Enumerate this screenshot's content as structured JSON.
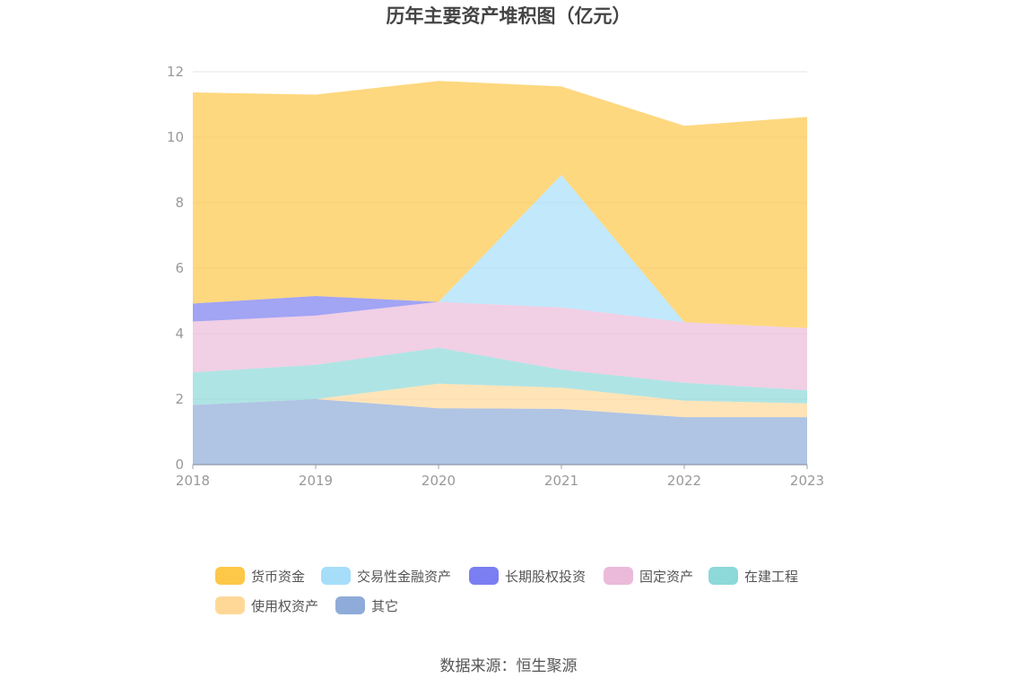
{
  "chart_data": {
    "type": "area",
    "stacked": true,
    "title": "历年主要资产堆积图（亿元）",
    "x": [
      "2018",
      "2019",
      "2020",
      "2021",
      "2022",
      "2023"
    ],
    "ylim": [
      0,
      12
    ],
    "yticks": [
      0,
      2,
      4,
      6,
      8,
      10,
      12
    ],
    "grid": true,
    "legend_position": "bottom",
    "series": [
      {
        "name": "其它",
        "color": "#8fabd9",
        "values": [
          1.82,
          2.0,
          1.72,
          1.7,
          1.45,
          1.45
        ]
      },
      {
        "name": "使用权资产",
        "color": "#ffd898",
        "values": [
          0,
          0,
          0.75,
          0.65,
          0.5,
          0.42
        ]
      },
      {
        "name": "在建工程",
        "color": "#8dd8d8",
        "values": [
          1.0,
          1.05,
          1.1,
          0.55,
          0.55,
          0.4
        ]
      },
      {
        "name": "固定资产",
        "color": "#ebbada",
        "values": [
          1.55,
          1.5,
          1.4,
          1.9,
          1.85,
          1.9
        ]
      },
      {
        "name": "长期股权投资",
        "color": "#7b7ef0",
        "values": [
          0.55,
          0.6,
          0,
          0,
          0,
          0
        ]
      },
      {
        "name": "交易性金融资产",
        "color": "#a6defa",
        "values": [
          0,
          0,
          0,
          4.05,
          0,
          0
        ]
      },
      {
        "name": "货币资金",
        "color": "#fdc848",
        "values": [
          6.45,
          6.15,
          6.75,
          2.7,
          6.0,
          6.45
        ]
      }
    ]
  },
  "legend": {
    "items": [
      {
        "label": "货币资金",
        "color": "#fdc848"
      },
      {
        "label": "交易性金融资产",
        "color": "#a6defa"
      },
      {
        "label": "长期股权投资",
        "color": "#7b7ef0"
      },
      {
        "label": "固定资产",
        "color": "#ebbada"
      },
      {
        "label": "在建工程",
        "color": "#8dd8d8"
      },
      {
        "label": "使用权资产",
        "color": "#ffd898"
      },
      {
        "label": "其它",
        "color": "#8fabd9"
      }
    ]
  },
  "source": "数据来源：恒生聚源"
}
